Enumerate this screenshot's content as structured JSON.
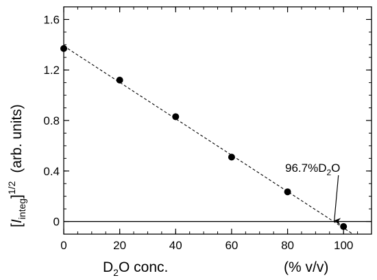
{
  "chart_data": {
    "type": "scatter",
    "xlim": [
      0,
      110
    ],
    "ylim": [
      -0.1,
      1.7
    ],
    "x_ticks": [
      0,
      20,
      40,
      60,
      80,
      100
    ],
    "x_tick_labels": [
      "0",
      "20",
      "40",
      "60",
      "80",
      "100"
    ],
    "x_minor_step": 5,
    "y_ticks": [
      0,
      0.4,
      0.8,
      1.2,
      1.6
    ],
    "y_tick_labels": [
      "0",
      "0.4",
      "0.8",
      "1.2",
      "1.6"
    ],
    "y_minor_step": 0.1,
    "xlabel": {
      "prefix": "D",
      "sub": "2",
      "suffix": "O conc.",
      "units": "(% v/v)"
    },
    "ylabel": {
      "open_bracket": "[",
      "italic": "I",
      "sub": "integ",
      "close_bracket": "]",
      "sup": "1/2",
      "units": "(arb. units)"
    },
    "points": [
      {
        "x": 0,
        "y": 1.37
      },
      {
        "x": 20,
        "y": 1.12
      },
      {
        "x": 40,
        "y": 0.83
      },
      {
        "x": 60,
        "y": 0.51
      },
      {
        "x": 80,
        "y": 0.235
      },
      {
        "x": 100,
        "y": -0.04
      }
    ],
    "fit_line": {
      "x0": 0,
      "y0": 1.39,
      "x1": 103.4,
      "y1": -0.1,
      "style": "dashed"
    },
    "zero_line": {
      "y": 0
    },
    "annotation": {
      "prefix": "96.7%D",
      "sub": "2",
      "suffix": "O",
      "arrow_x": 96.7,
      "arrow_y": 0
    },
    "colors": {
      "axis": "#000000",
      "points": "#000000"
    }
  }
}
